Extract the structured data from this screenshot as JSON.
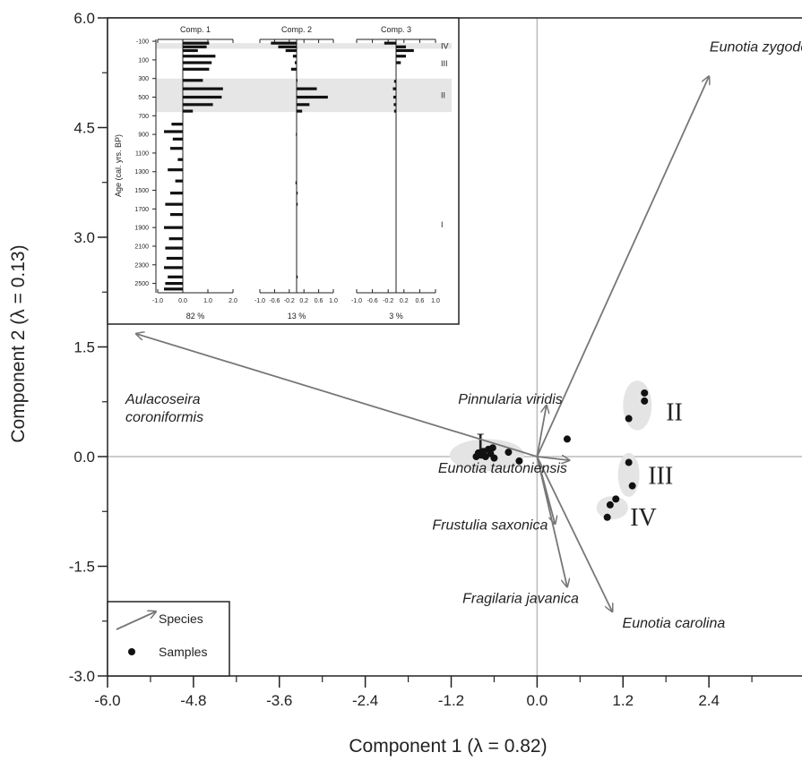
{
  "chart_data": [
    {
      "type": "scatter",
      "title": "",
      "xlabel": "Component 1 (λ = 0.82)",
      "ylabel": "Component 2 (λ = 0.13)",
      "xlim": [
        -6.0,
        3.7
      ],
      "ylim": [
        -3.0,
        6.0
      ],
      "x_ticks": [
        "-6.0",
        "-4.8",
        "-3.6",
        "-2.4",
        "-1.2",
        "0.0",
        "1.2",
        "2.4"
      ],
      "y_ticks": [
        "6.0",
        "4.5",
        "3.0",
        "1.5",
        "0.0",
        "-1.5",
        "-3.0"
      ],
      "x_tick_values": [
        -6.0,
        -4.8,
        -3.6,
        -2.4,
        -1.2,
        0.0,
        1.2,
        2.4
      ],
      "y_tick_values": [
        6.0,
        4.5,
        3.0,
        1.5,
        0.0,
        -1.5,
        -3.0
      ],
      "zero_lines": true,
      "species": [
        {
          "name": "Eunotia zygodon",
          "x": 2.4,
          "y": 5.2
        },
        {
          "name": "Aulacoseira coroniformis",
          "x": -5.6,
          "y": 1.68
        },
        {
          "name": "Pinnularia viridis",
          "x": 0.13,
          "y": 0.7
        },
        {
          "name": "Eunotia tautoniensis",
          "x": 0.45,
          "y": -0.05
        },
        {
          "name": "Frustulia saxonica",
          "x": 0.25,
          "y": -0.92
        },
        {
          "name": "Fragilaria javanica",
          "x": 0.42,
          "y": -1.78
        },
        {
          "name": "Eunotia carolina",
          "x": 1.05,
          "y": -2.12
        }
      ],
      "samples": [
        {
          "x": -0.85,
          "y": 0.0
        },
        {
          "x": -0.82,
          "y": 0.05
        },
        {
          "x": -0.78,
          "y": 0.02
        },
        {
          "x": -0.75,
          "y": 0.07
        },
        {
          "x": -0.72,
          "y": 0.0
        },
        {
          "x": -0.68,
          "y": 0.1
        },
        {
          "x": -0.65,
          "y": 0.04
        },
        {
          "x": -0.62,
          "y": 0.12
        },
        {
          "x": -0.6,
          "y": -0.02
        },
        {
          "x": -0.4,
          "y": 0.06
        },
        {
          "x": -0.25,
          "y": -0.06
        },
        {
          "x": 0.42,
          "y": 0.24
        },
        {
          "x": 1.28,
          "y": 0.52
        },
        {
          "x": 1.5,
          "y": 0.76
        },
        {
          "x": 1.5,
          "y": 0.87
        },
        {
          "x": 1.28,
          "y": -0.08
        },
        {
          "x": 1.33,
          "y": -0.4
        },
        {
          "x": 1.1,
          "y": -0.58
        },
        {
          "x": 1.02,
          "y": -0.66
        },
        {
          "x": 0.98,
          "y": -0.83
        }
      ],
      "groups": [
        {
          "label": "I",
          "cx": -0.7,
          "cy": 0.02,
          "rx": 0.52,
          "ry": 0.22,
          "lx": -0.85,
          "ly": 0.2
        },
        {
          "label": "II",
          "cx": 1.4,
          "cy": 0.7,
          "rx": 0.2,
          "ry": 0.34,
          "lx": 1.8,
          "ly": 0.62
        },
        {
          "label": "III",
          "cx": 1.28,
          "cy": -0.25,
          "rx": 0.15,
          "ry": 0.3,
          "lx": 1.55,
          "ly": -0.25
        },
        {
          "label": "IV",
          "cx": 1.05,
          "cy": -0.7,
          "rx": 0.22,
          "ry": 0.16,
          "lx": 1.3,
          "ly": -0.82
        }
      ],
      "legend": {
        "species": "Species",
        "samples": "Samples",
        "placement": "bottom-left"
      }
    },
    {
      "type": "bar",
      "ylabel": "Age (cal. yrs. BP)",
      "age_ticks": [
        "-100",
        "100",
        "300",
        "500",
        "700",
        "900",
        "1100",
        "1300",
        "1500",
        "1700",
        "1900",
        "2100",
        "2300",
        "2500"
      ],
      "age_values": [
        -100,
        100,
        300,
        500,
        700,
        900,
        1100,
        1300,
        1500,
        1700,
        1900,
        2100,
        2300,
        2500
      ],
      "zones": [
        {
          "label": "IV",
          "from": -80,
          "to": -20,
          "shaded": true
        },
        {
          "label": "III",
          "from": -20,
          "to": 300,
          "shaded": false
        },
        {
          "label": "II",
          "from": 300,
          "to": 660,
          "shaded": true
        },
        {
          "label": "I",
          "from": 660,
          "to": 2600,
          "shaded": false
        }
      ],
      "panels": [
        {
          "title": "Comp. 1",
          "percent": "82 %",
          "ticks": [
            "-1.0",
            "0.0",
            "1.0",
            "2.0"
          ],
          "tick_values": [
            -1.0,
            0.0,
            1.0,
            2.0
          ],
          "xlim": [
            -1.0,
            2.0
          ],
          "samples": [
            {
              "age": -80,
              "value": 1.05
            },
            {
              "age": -40,
              "value": 0.95
            },
            {
              "age": 0,
              "value": 0.6
            },
            {
              "age": 60,
              "value": 1.3
            },
            {
              "age": 130,
              "value": 1.15
            },
            {
              "age": 200,
              "value": 1.05
            },
            {
              "age": 320,
              "value": 0.8
            },
            {
              "age": 410,
              "value": 1.6
            },
            {
              "age": 500,
              "value": 1.55
            },
            {
              "age": 580,
              "value": 1.2
            },
            {
              "age": 650,
              "value": 0.4
            },
            {
              "age": 790,
              "value": -0.45
            },
            {
              "age": 870,
              "value": -0.75
            },
            {
              "age": 950,
              "value": -0.4
            },
            {
              "age": 1050,
              "value": -0.5
            },
            {
              "age": 1170,
              "value": -0.2
            },
            {
              "age": 1280,
              "value": -0.6
            },
            {
              "age": 1400,
              "value": -0.3
            },
            {
              "age": 1530,
              "value": -0.5
            },
            {
              "age": 1650,
              "value": -0.7
            },
            {
              "age": 1760,
              "value": -0.5
            },
            {
              "age": 1900,
              "value": -0.75
            },
            {
              "age": 2020,
              "value": -0.55
            },
            {
              "age": 2120,
              "value": -0.7
            },
            {
              "age": 2230,
              "value": -0.65
            },
            {
              "age": 2330,
              "value": -0.75
            },
            {
              "age": 2430,
              "value": -0.6
            },
            {
              "age": 2500,
              "value": -0.7
            },
            {
              "age": 2560,
              "value": -0.75
            }
          ]
        },
        {
          "title": "Comp. 2",
          "percent": "13 %",
          "ticks": [
            "-1.0",
            "-0.6",
            "-0.2",
            "0.2",
            "0.6",
            "1.0"
          ],
          "tick_values": [
            -1.0,
            -0.6,
            -0.2,
            0.2,
            0.6,
            1.0
          ],
          "xlim": [
            -1.0,
            1.0
          ],
          "samples": [
            {
              "age": -80,
              "value": -0.7
            },
            {
              "age": -40,
              "value": -0.5
            },
            {
              "age": 0,
              "value": -0.3
            },
            {
              "age": 60,
              "value": -0.1
            },
            {
              "age": 130,
              "value": -0.05
            },
            {
              "age": 200,
              "value": -0.15
            },
            {
              "age": 320,
              "value": 0.0
            },
            {
              "age": 410,
              "value": 0.55
            },
            {
              "age": 500,
              "value": 0.85
            },
            {
              "age": 580,
              "value": 0.35
            },
            {
              "age": 650,
              "value": 0.15
            },
            {
              "age": 900,
              "value": -0.02
            },
            {
              "age": 1420,
              "value": -0.03
            },
            {
              "age": 1530,
              "value": 0.03
            },
            {
              "age": 1650,
              "value": 0.03
            },
            {
              "age": 2430,
              "value": 0.03
            }
          ]
        },
        {
          "title": "Comp. 3",
          "percent": "3 %",
          "ticks": [
            "-1.0",
            "-0.6",
            "-0.2",
            "0.2",
            "0.6",
            "1.0"
          ],
          "tick_values": [
            -1.0,
            -0.6,
            -0.2,
            0.2,
            0.6,
            1.0
          ],
          "xlim": [
            -1.0,
            1.0
          ],
          "samples": [
            {
              "age": -80,
              "value": -0.3
            },
            {
              "age": -40,
              "value": 0.25
            },
            {
              "age": 0,
              "value": 0.45
            },
            {
              "age": 60,
              "value": 0.25
            },
            {
              "age": 130,
              "value": 0.12
            },
            {
              "age": 330,
              "value": -0.05
            },
            {
              "age": 410,
              "value": -0.08
            },
            {
              "age": 500,
              "value": -0.07
            },
            {
              "age": 580,
              "value": -0.06
            },
            {
              "age": 650,
              "value": -0.05
            }
          ]
        }
      ]
    }
  ]
}
